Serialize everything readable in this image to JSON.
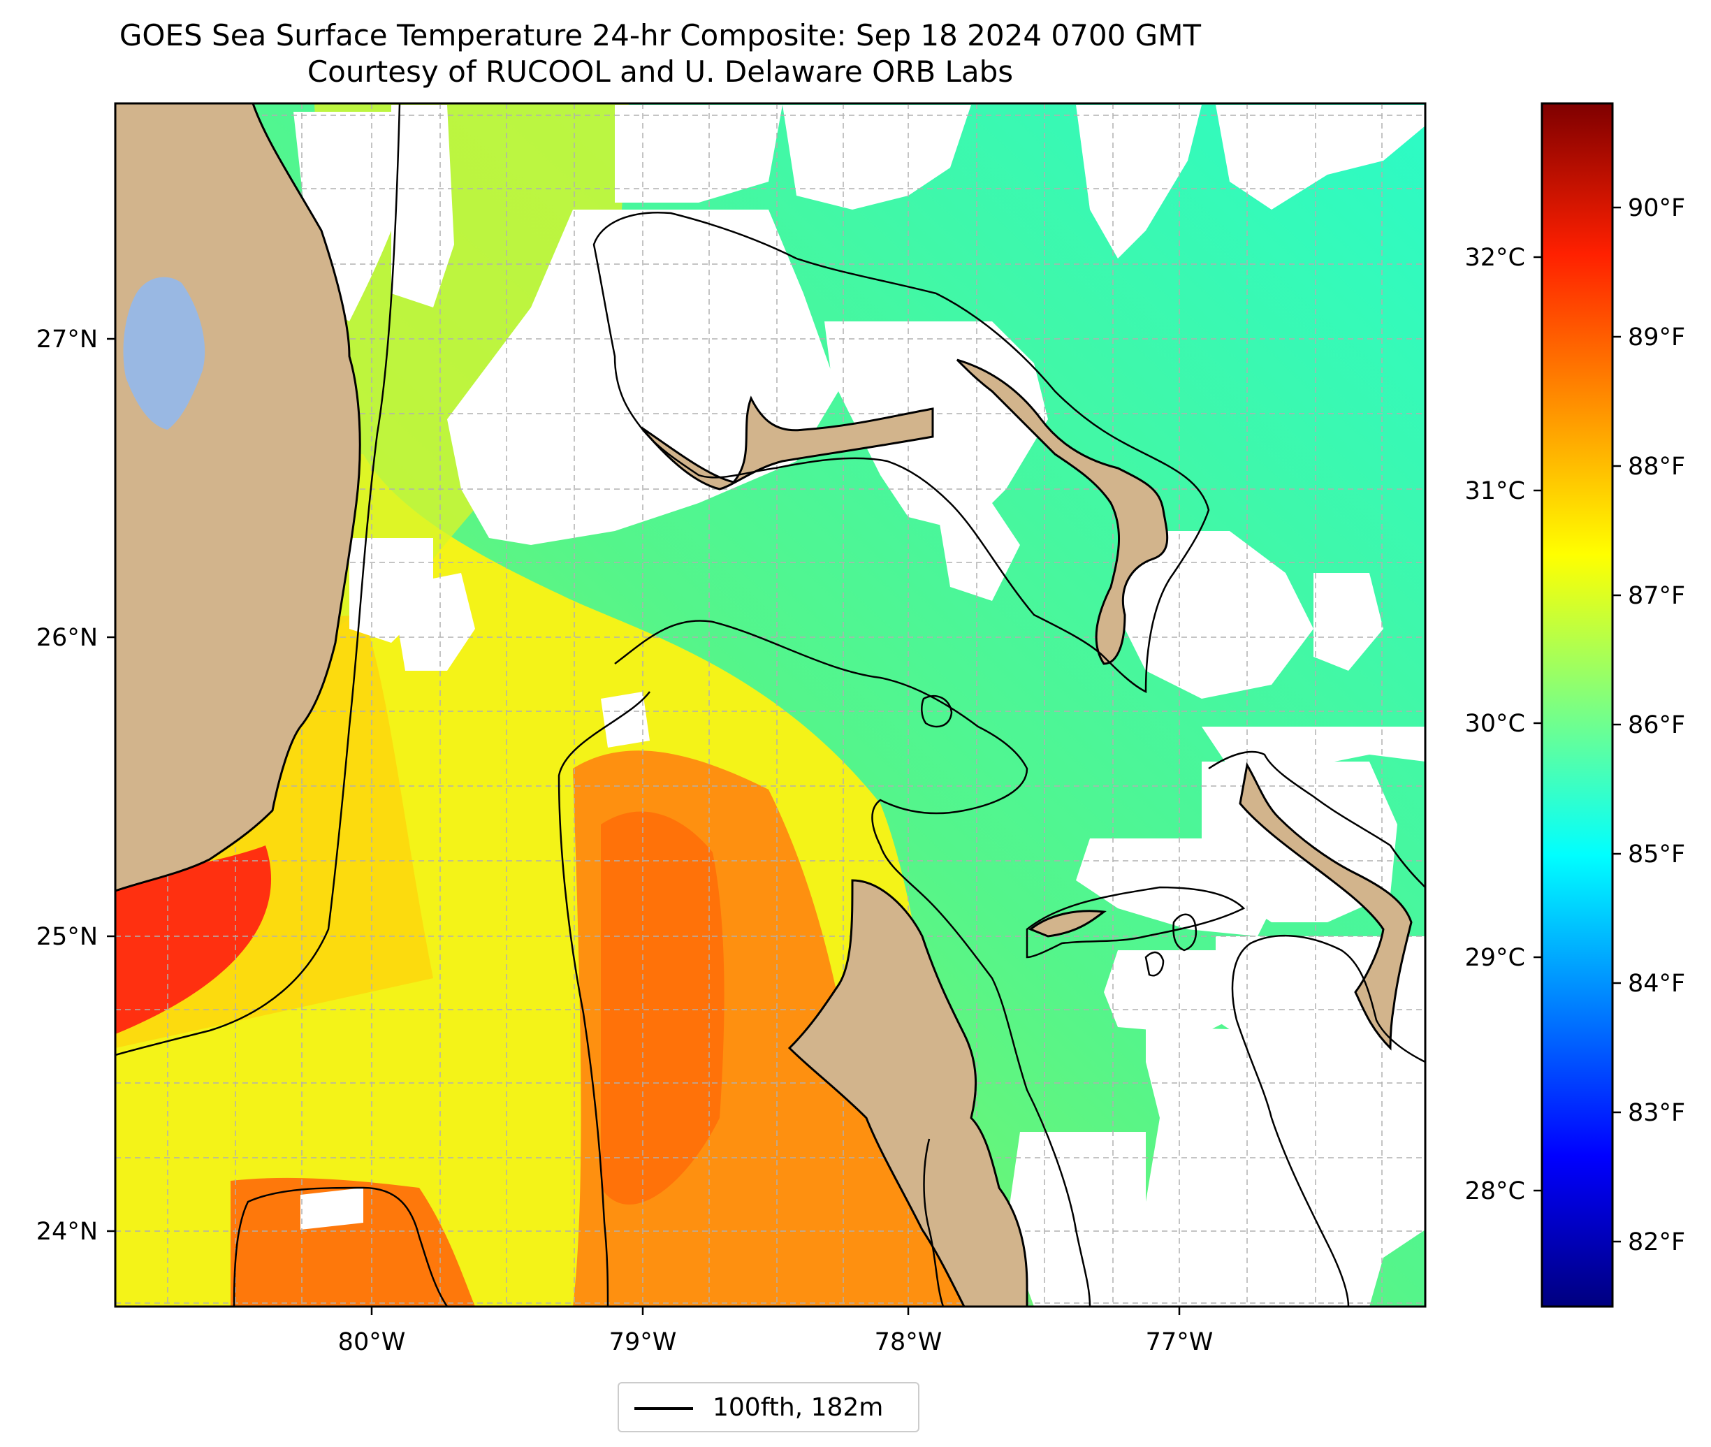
{
  "title": "GOES Sea Surface Temperature 24-hr Composite: Sep 18 2024 0700 GMT",
  "subtitle": "Courtesy of RUCOOL and U. Delaware ORB Labs",
  "map": {
    "lon_ticks": [
      "80°W",
      "79°W",
      "78°W",
      "77°W"
    ],
    "lat_ticks": [
      "27°N",
      "26°N",
      "25°N",
      "24°N"
    ],
    "colors": {
      "land": "#d2b48c",
      "lake": "#99b8e3",
      "cloud": "#ffffff",
      "contour": "#000000"
    }
  },
  "colorbar": {
    "celsius_ticks": [
      "32°C",
      "31°C",
      "30°C",
      "29°C",
      "28°C"
    ],
    "fahrenheit_ticks": [
      "90°F",
      "89°F",
      "88°F",
      "87°F",
      "86°F",
      "85°F",
      "84°F",
      "83°F",
      "82°F"
    ],
    "colormap": "jet",
    "range_f": [
      81.5,
      90.8
    ]
  },
  "legend": {
    "label": "100fth, 182m"
  }
}
